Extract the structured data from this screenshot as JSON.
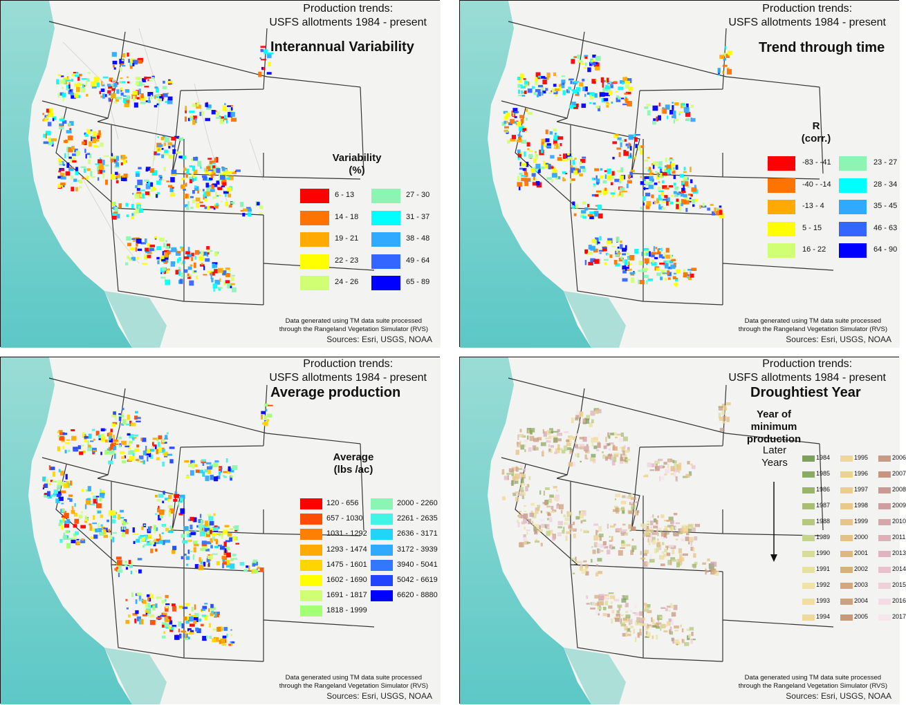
{
  "panels": [
    {
      "id": "variability",
      "title_line1": "Production trends:",
      "title_line2": "USFS allotments 1984 - present",
      "map_title": "Interannual Variability",
      "legend_title_1": "Variability",
      "legend_title_2": "(%)",
      "legend": [
        {
          "label": "6 - 13",
          "color": "#ff0000"
        },
        {
          "label": "14 - 18",
          "color": "#ff7300"
        },
        {
          "label": "19 - 21",
          "color": "#ffaa00"
        },
        {
          "label": "22 - 23",
          "color": "#ffff00"
        },
        {
          "label": "24 - 26",
          "color": "#d1ff73"
        },
        {
          "label": "27 - 30",
          "color": "#8cf5b4"
        },
        {
          "label": "31 - 37",
          "color": "#00ffff"
        },
        {
          "label": "38 - 48",
          "color": "#30aaff"
        },
        {
          "label": "49 - 64",
          "color": "#3366ff"
        },
        {
          "label": "65 - 89",
          "color": "#0000ff"
        }
      ],
      "credit_1": "Data generated using TM data suite processed",
      "credit_2": "through the Rangeland Vegetation Simulator (RVS)",
      "sources": "Sources: Esri, USGS, NOAA"
    },
    {
      "id": "trend",
      "title_line1": "Production trends:",
      "title_line2": "USFS allotments 1984 - present",
      "map_title": "Trend through time",
      "legend_title_1": "R",
      "legend_title_2": "(corr.)",
      "legend": [
        {
          "label": "-83 - -41",
          "color": "#ff0000"
        },
        {
          "label": "-40 - -14",
          "color": "#ff7300"
        },
        {
          "label": "-13 - 4",
          "color": "#ffaa00"
        },
        {
          "label": "5 - 15",
          "color": "#ffff00"
        },
        {
          "label": "16 - 22",
          "color": "#d1ff73"
        },
        {
          "label": "23 - 27",
          "color": "#8cf5b4"
        },
        {
          "label": "28 - 34",
          "color": "#00ffff"
        },
        {
          "label": "35 - 45",
          "color": "#30aaff"
        },
        {
          "label": "46 - 63",
          "color": "#3366ff"
        },
        {
          "label": "64 - 90",
          "color": "#0000ff"
        }
      ],
      "credit_1": "Data generated using TM data suite processed",
      "credit_2": "through the Rangeland Vegetation Simulator (RVS)",
      "sources": "Sources: Esri, USGS, NOAA"
    },
    {
      "id": "average",
      "title_line1": "Production trends:",
      "title_line2": "USFS allotments 1984 - present",
      "map_title": "Average production",
      "legend_title_1": "Average",
      "legend_title_2": "(lbs /ac)",
      "legend": [
        {
          "label": "120 - 656",
          "color": "#ff0000"
        },
        {
          "label": "657 - 1030",
          "color": "#ff4d00"
        },
        {
          "label": "1031 - 1292",
          "color": "#ff8000"
        },
        {
          "label": "1293 - 1474",
          "color": "#ffaa00"
        },
        {
          "label": "1475 - 1601",
          "color": "#ffd500"
        },
        {
          "label": "1602 - 1690",
          "color": "#ffff00"
        },
        {
          "label": "1691 - 1817",
          "color": "#d1ff73"
        },
        {
          "label": "1818 - 1999",
          "color": "#a3ff73"
        },
        {
          "label": "2000 - 2260",
          "color": "#8cf5b4"
        },
        {
          "label": "2261 - 2635",
          "color": "#40f5e6"
        },
        {
          "label": "2636 - 3171",
          "color": "#20d5f5"
        },
        {
          "label": "3172 - 3939",
          "color": "#30aaff"
        },
        {
          "label": "3940 - 5041",
          "color": "#3377ff"
        },
        {
          "label": "5042 - 6619",
          "color": "#2244ff"
        },
        {
          "label": "6620 - 8880",
          "color": "#0000ff"
        }
      ],
      "credit_1": "Data generated using TM data suite processed",
      "credit_2": "through the Rangeland Vegetation Simulator (RVS)",
      "sources": "Sources: Esri, USGS, NOAA"
    },
    {
      "id": "drought",
      "title_line1": "Production trends:",
      "title_line2": "USFS allotments 1984 - present",
      "map_title": "Droughtiest Year",
      "legend_title_1": "Year of",
      "legend_title_2": "minimum",
      "legend_title_3": "production",
      "later_1": "Later",
      "later_2": "Years",
      "legend": [
        {
          "label": "1984",
          "color": "#7fa05c"
        },
        {
          "label": "1985",
          "color": "#8daa63"
        },
        {
          "label": "1986",
          "color": "#9ab46b"
        },
        {
          "label": "1987",
          "color": "#a8be73"
        },
        {
          "label": "1988",
          "color": "#b5c87c"
        },
        {
          "label": "1989",
          "color": "#c5d48b"
        },
        {
          "label": "1990",
          "color": "#d7dc96"
        },
        {
          "label": "1991",
          "color": "#e5e2a0"
        },
        {
          "label": "1992",
          "color": "#eee3a4"
        },
        {
          "label": "1993",
          "color": "#f0dfa0"
        },
        {
          "label": "1994",
          "color": "#efd99a"
        },
        {
          "label": "1995",
          "color": "#eed898"
        },
        {
          "label": "1996",
          "color": "#ebd192"
        },
        {
          "label": "1997",
          "color": "#ebcd8e"
        },
        {
          "label": "1998",
          "color": "#e8c98a"
        },
        {
          "label": "1999",
          "color": "#e8c586"
        },
        {
          "label": "2000",
          "color": "#e4c083"
        },
        {
          "label": "2001",
          "color": "#dfb880"
        },
        {
          "label": "2002",
          "color": "#d8af7f"
        },
        {
          "label": "2003",
          "color": "#d4a87d"
        },
        {
          "label": "2004",
          "color": "#cfa07c"
        },
        {
          "label": "2005",
          "color": "#c9977a"
        },
        {
          "label": "2006",
          "color": "#c99a86"
        },
        {
          "label": "2007",
          "color": "#c6947f"
        },
        {
          "label": "2008",
          "color": "#c99993"
        },
        {
          "label": "2009",
          "color": "#cf9fa0"
        },
        {
          "label": "2010",
          "color": "#d4a8ab"
        },
        {
          "label": "2011",
          "color": "#dbb1b6"
        },
        {
          "label": "2013",
          "color": "#e2b3c0"
        },
        {
          "label": "2014",
          "color": "#e9c2cc"
        },
        {
          "label": "2015",
          "color": "#efd0da"
        },
        {
          "label": "2016",
          "color": "#f3dce5"
        },
        {
          "label": "2017",
          "color": "#f6e6ee"
        }
      ],
      "credit_1": "Data generated using TM data suite processed",
      "credit_2": "through the Rangeland Vegetation Simulator (RVS)",
      "sources": "Sources: Esri, USGS, NOAA"
    }
  ],
  "colors": {
    "ocean": "#6fd0cb",
    "land": "#f3f3f1",
    "terrain": "#d6d6d4",
    "borders": "#333333"
  }
}
